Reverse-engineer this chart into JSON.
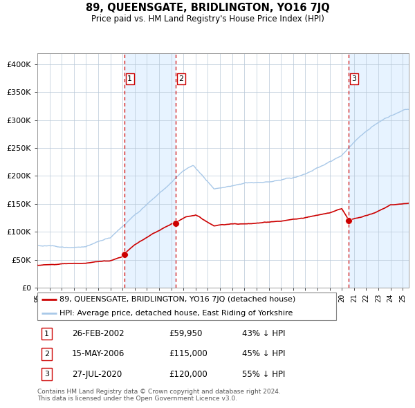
{
  "title": "89, QUEENSGATE, BRIDLINGTON, YO16 7JQ",
  "subtitle": "Price paid vs. HM Land Registry's House Price Index (HPI)",
  "legend_line1": "89, QUEENSGATE, BRIDLINGTON, YO16 7JQ (detached house)",
  "legend_line2": "HPI: Average price, detached house, East Riding of Yorkshire",
  "footer1": "Contains HM Land Registry data © Crown copyright and database right 2024.",
  "footer2": "This data is licensed under the Open Government Licence v3.0.",
  "transactions": [
    {
      "num": 1,
      "date": "26-FEB-2002",
      "price": 59950,
      "price_str": "£59,950",
      "pct": "43%",
      "dir": "↓",
      "x_year": 2002.15
    },
    {
      "num": 2,
      "date": "15-MAY-2006",
      "price": 115000,
      "price_str": "£115,000",
      "pct": "45%",
      "dir": "↓",
      "x_year": 2006.37
    },
    {
      "num": 3,
      "date": "27-JUL-2020",
      "price": 120000,
      "price_str": "£120,000",
      "pct": "55%",
      "dir": "↓",
      "x_year": 2020.57
    }
  ],
  "hpi_color": "#a8c8e8",
  "price_color": "#cc0000",
  "dashed_color": "#cc0000",
  "bg_band_color": "#ddeeff",
  "ylim": [
    0,
    420000
  ],
  "yticks": [
    0,
    50000,
    100000,
    150000,
    200000,
    250000,
    300000,
    350000,
    400000
  ],
  "xmin": 1995.0,
  "xmax": 2025.5,
  "fig_width": 6.0,
  "fig_height": 5.9,
  "dpi": 100
}
